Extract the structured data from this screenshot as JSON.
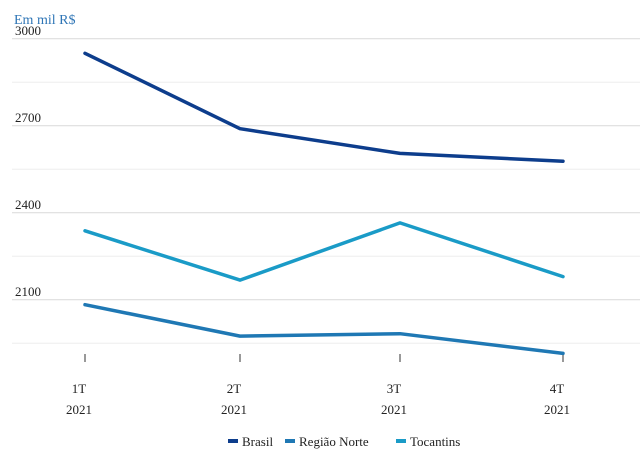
{
  "chart_data": {
    "type": "line",
    "unit_label": "Em mil R$",
    "categories": [
      {
        "line1": "1T",
        "line2": "2021"
      },
      {
        "line1": "2T",
        "line2": "2021"
      },
      {
        "line1": "3T",
        "line2": "2021"
      },
      {
        "line1": "4T",
        "line2": "2021"
      }
    ],
    "y_ticks": [
      2100,
      2400,
      2700,
      3000
    ],
    "ylim": [
      1920,
      3020
    ],
    "grid": true,
    "legend_position": "bottom",
    "series": [
      {
        "name": "Brasil",
        "color": "#0d3d8c",
        "values": [
          2950,
          2690,
          2605,
          2578
        ]
      },
      {
        "name": "Região Norte",
        "color": "#1f78b4",
        "values": [
          2083,
          1975,
          1983,
          1915
        ]
      },
      {
        "name": "Tocantins",
        "color": "#1a9bc7",
        "values": [
          2338,
          2168,
          2365,
          2180
        ]
      }
    ]
  }
}
